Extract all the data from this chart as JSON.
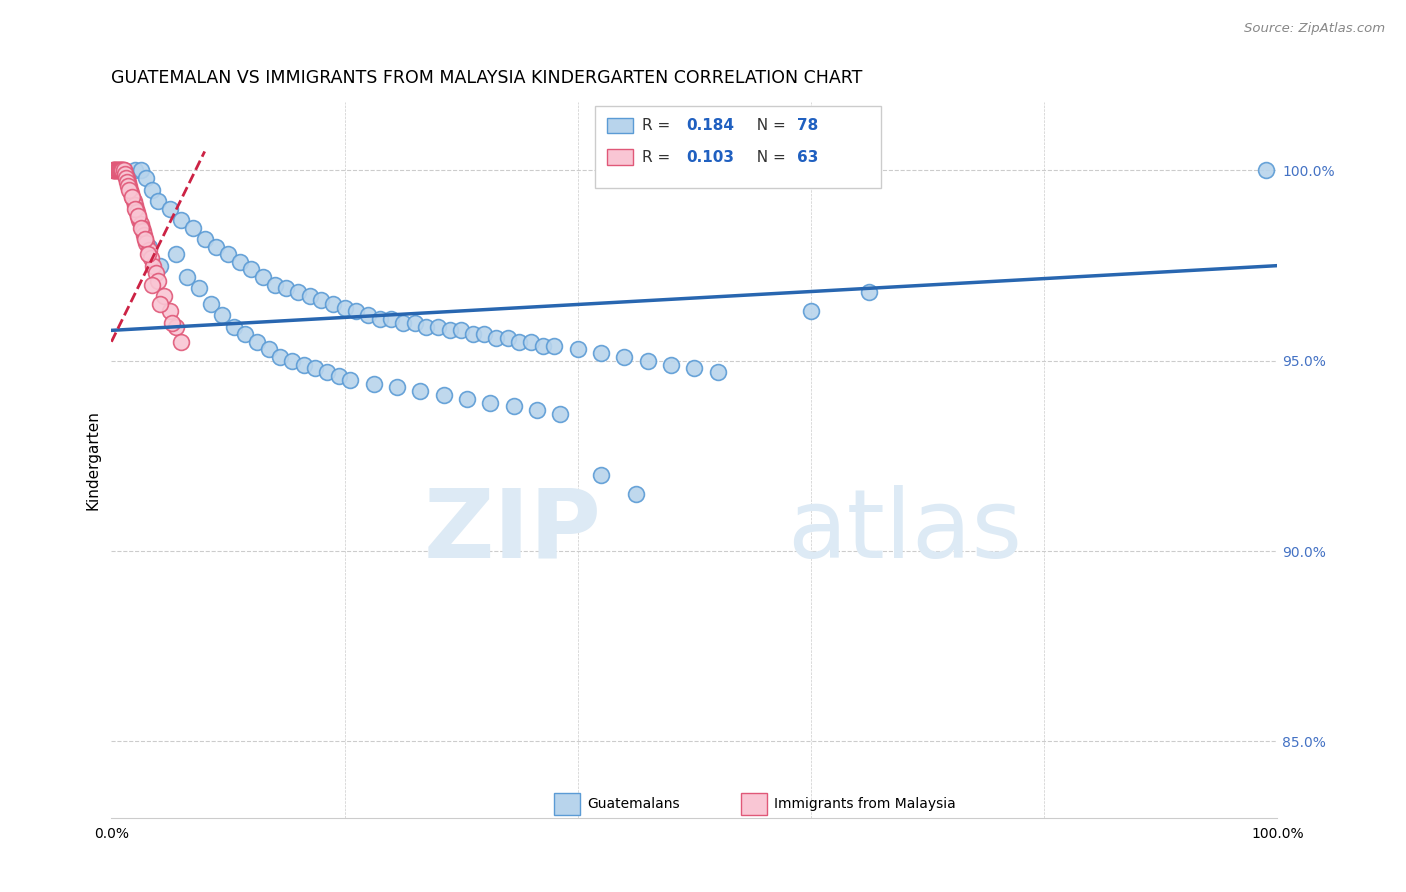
{
  "title": "GUATEMALAN VS IMMIGRANTS FROM MALAYSIA KINDERGARTEN CORRELATION CHART",
  "source": "Source: ZipAtlas.com",
  "ylabel": "Kindergarten",
  "right_yticks": [
    85.0,
    90.0,
    95.0,
    100.0
  ],
  "right_ytick_labels": [
    "85.0%",
    "90.0%",
    "95.0%",
    "100.0%"
  ],
  "xlim": [
    0.0,
    100.0
  ],
  "ylim": [
    83.0,
    101.8
  ],
  "blue_R": 0.184,
  "blue_N": 78,
  "pink_R": 0.103,
  "pink_N": 63,
  "blue_color": "#b8d4ec",
  "blue_edge_color": "#5b9bd5",
  "pink_color": "#f9c6d4",
  "pink_edge_color": "#e05878",
  "blue_line_color": "#2866b0",
  "pink_line_color": "#cc2244",
  "watermark_zip_color": "#ddeaf5",
  "watermark_atlas_color": "#ddeaf5",
  "background_color": "#ffffff",
  "grid_color": "#cccccc",
  "blue_line_x0": 0.0,
  "blue_line_y0": 95.8,
  "blue_line_x1": 100.0,
  "blue_line_y1": 97.5,
  "pink_line_x0": 0.0,
  "pink_line_y0": 95.5,
  "pink_line_x1": 8.0,
  "pink_line_y1": 100.5,
  "blue_x": [
    2.0,
    2.5,
    3.0,
    3.5,
    4.0,
    5.0,
    6.0,
    7.0,
    8.0,
    9.0,
    10.0,
    11.0,
    12.0,
    13.0,
    14.0,
    15.0,
    16.0,
    17.0,
    18.0,
    19.0,
    20.0,
    21.0,
    22.0,
    23.0,
    24.0,
    25.0,
    26.0,
    27.0,
    28.0,
    29.0,
    30.0,
    31.0,
    32.0,
    33.0,
    34.0,
    35.0,
    36.0,
    37.0,
    38.0,
    40.0,
    42.0,
    44.0,
    46.0,
    48.0,
    50.0,
    52.0,
    60.0,
    65.0,
    99.0,
    3.2,
    4.2,
    5.5,
    6.5,
    7.5,
    8.5,
    9.5,
    10.5,
    11.5,
    12.5,
    13.5,
    14.5,
    15.5,
    16.5,
    17.5,
    18.5,
    19.5,
    20.5,
    22.5,
    24.5,
    26.5,
    28.5,
    30.5,
    32.5,
    34.5,
    36.5,
    38.5,
    42.0,
    45.0
  ],
  "blue_y": [
    100.0,
    100.0,
    99.8,
    99.5,
    99.2,
    99.0,
    98.7,
    98.5,
    98.2,
    98.0,
    97.8,
    97.6,
    97.4,
    97.2,
    97.0,
    96.9,
    96.8,
    96.7,
    96.6,
    96.5,
    96.4,
    96.3,
    96.2,
    96.1,
    96.1,
    96.0,
    96.0,
    95.9,
    95.9,
    95.8,
    95.8,
    95.7,
    95.7,
    95.6,
    95.6,
    95.5,
    95.5,
    95.4,
    95.4,
    95.3,
    95.2,
    95.1,
    95.0,
    94.9,
    94.8,
    94.7,
    96.3,
    96.8,
    100.0,
    98.0,
    97.5,
    97.8,
    97.2,
    96.9,
    96.5,
    96.2,
    95.9,
    95.7,
    95.5,
    95.3,
    95.1,
    95.0,
    94.9,
    94.8,
    94.7,
    94.6,
    94.5,
    94.4,
    94.3,
    94.2,
    94.1,
    94.0,
    93.9,
    93.8,
    93.7,
    93.6,
    92.0,
    91.5
  ],
  "pink_x": [
    0.1,
    0.2,
    0.3,
    0.4,
    0.5,
    0.6,
    0.7,
    0.8,
    0.9,
    1.0,
    1.1,
    1.2,
    1.3,
    1.4,
    1.5,
    1.6,
    1.7,
    1.8,
    1.9,
    2.0,
    2.1,
    2.2,
    2.3,
    2.4,
    2.5,
    2.6,
    2.7,
    2.8,
    2.9,
    3.0,
    3.2,
    3.4,
    3.6,
    3.8,
    4.0,
    4.5,
    5.0,
    5.5,
    6.0,
    0.15,
    0.25,
    0.35,
    0.45,
    0.55,
    0.65,
    0.75,
    0.85,
    0.95,
    1.05,
    1.15,
    1.25,
    1.35,
    1.45,
    1.55,
    1.75,
    2.05,
    2.25,
    2.55,
    2.85,
    3.1,
    3.5,
    4.2,
    5.2
  ],
  "pink_y": [
    100.0,
    100.0,
    100.0,
    100.0,
    100.0,
    100.0,
    100.0,
    100.0,
    100.0,
    100.0,
    100.0,
    99.9,
    99.8,
    99.7,
    99.6,
    99.5,
    99.4,
    99.3,
    99.2,
    99.1,
    99.0,
    98.9,
    98.8,
    98.7,
    98.6,
    98.5,
    98.4,
    98.3,
    98.2,
    98.1,
    97.9,
    97.7,
    97.5,
    97.3,
    97.1,
    96.7,
    96.3,
    95.9,
    95.5,
    100.0,
    100.0,
    100.0,
    100.0,
    100.0,
    100.0,
    100.0,
    100.0,
    100.0,
    100.0,
    99.9,
    99.8,
    99.7,
    99.6,
    99.5,
    99.3,
    99.0,
    98.8,
    98.5,
    98.2,
    97.8,
    97.0,
    96.5,
    96.0
  ]
}
